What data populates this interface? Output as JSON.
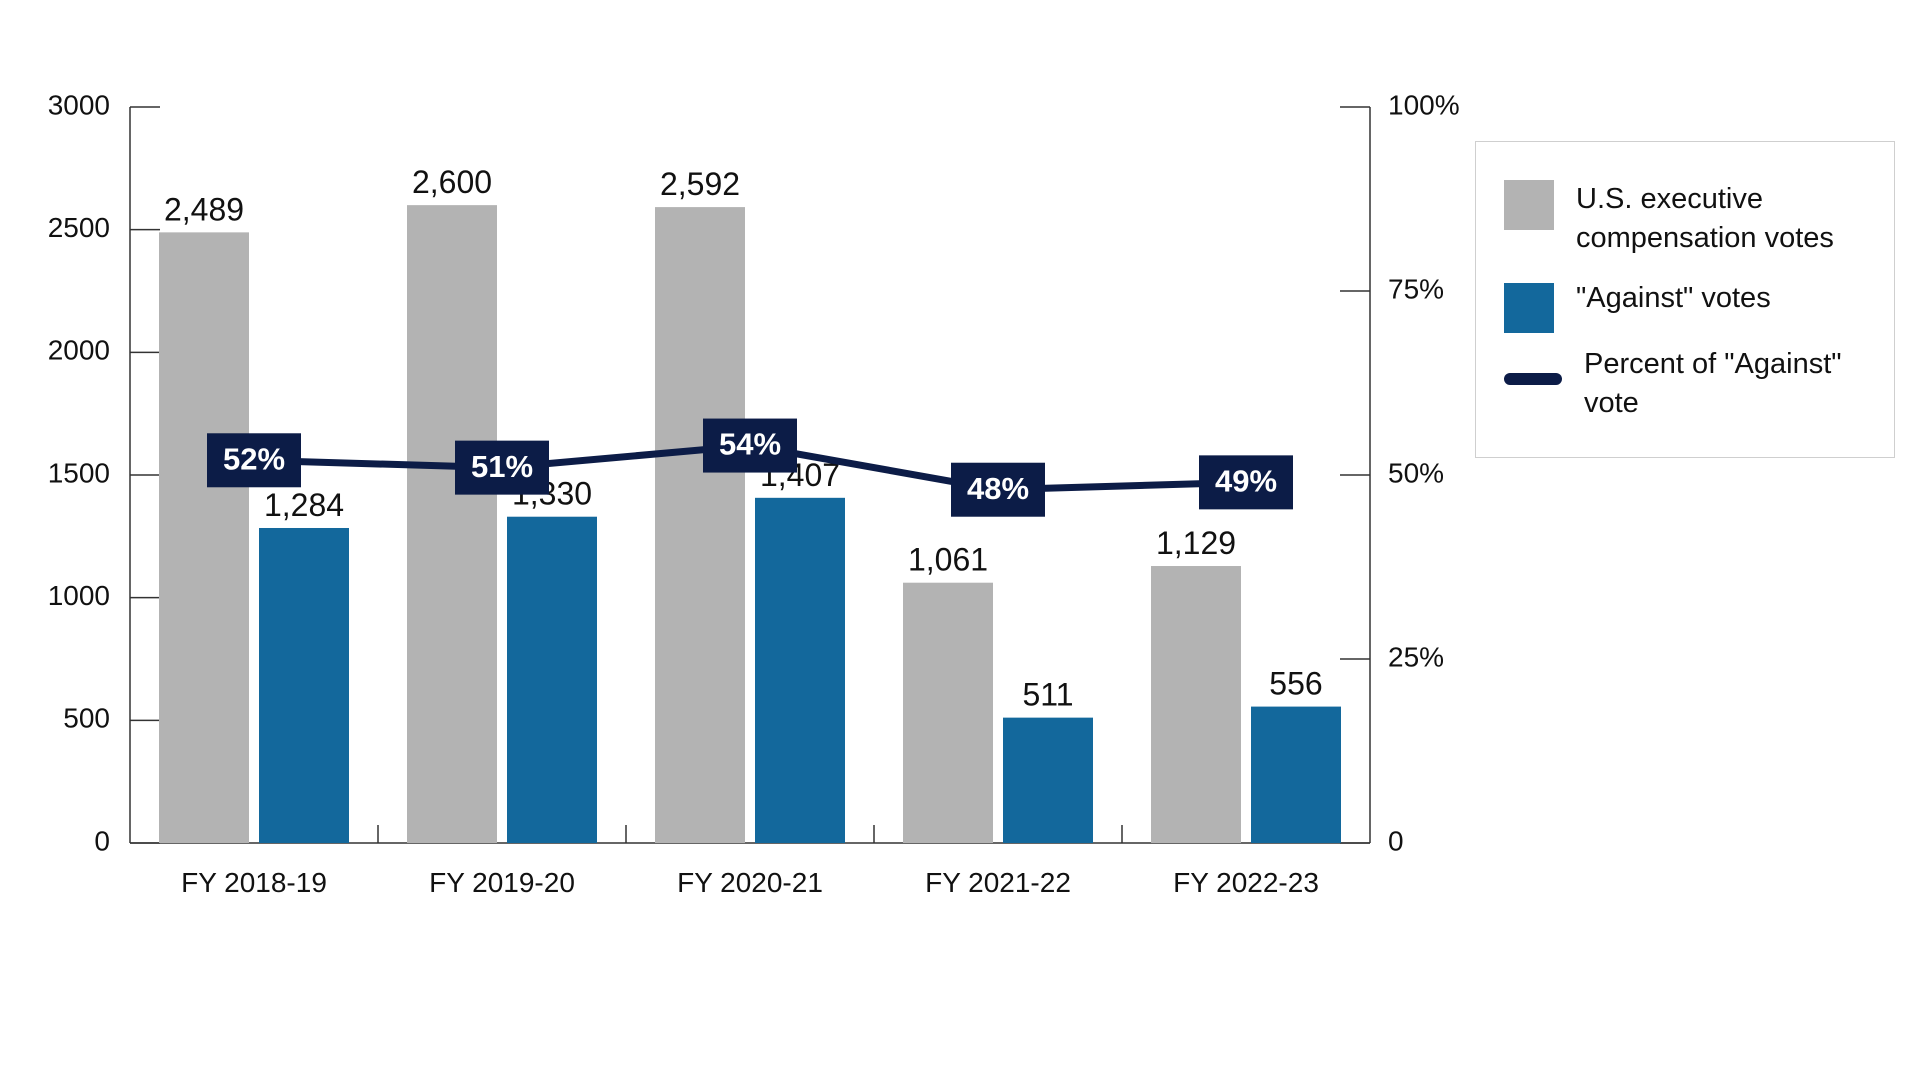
{
  "chart_data": {
    "type": "bar",
    "categories": [
      "FY 2018-19",
      "FY 2019-20",
      "FY 2020-21",
      "FY 2021-22",
      "FY 2022-23"
    ],
    "series": [
      {
        "name": "U.S. executive compensation votes",
        "values": [
          2489,
          2600,
          2592,
          1061,
          1129
        ],
        "labels": [
          "2,489",
          "2,600",
          "2,592",
          "1,061",
          "1,129"
        ],
        "color": "#b3b3b3"
      },
      {
        "name": "\"Against\" votes",
        "values": [
          1284,
          1330,
          1407,
          511,
          556
        ],
        "labels": [
          "1,284",
          "1,330",
          "1,407",
          "511",
          "556"
        ],
        "color": "#13689c"
      },
      {
        "name": "Percent of \"Against\" vote",
        "type": "line",
        "axis": "right",
        "values": [
          52,
          51,
          54,
          48,
          49
        ],
        "labels": [
          "52%",
          "51%",
          "54%",
          "48%",
          "49%"
        ],
        "color": "#0c1c47"
      }
    ],
    "left_axis": {
      "ylim": [
        0,
        3000
      ],
      "ticks": [
        "0",
        "500",
        "1000",
        "1500",
        "2000",
        "2500",
        "3000"
      ]
    },
    "right_axis": {
      "ylim": [
        0,
        100
      ],
      "ticks": [
        "0",
        "25%",
        "50%",
        "75%",
        "100%"
      ]
    },
    "grid": false,
    "legend_position": "right"
  }
}
